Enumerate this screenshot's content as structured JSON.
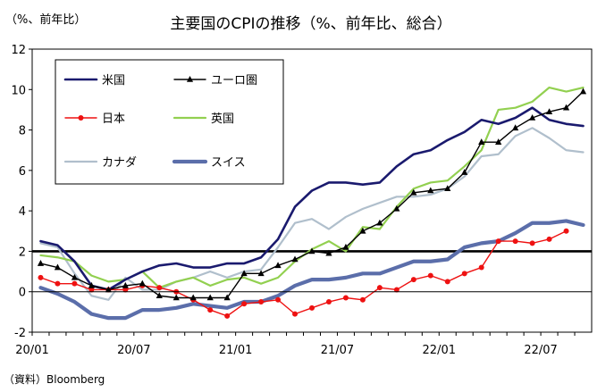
{
  "chart_data": {
    "type": "line",
    "title": "主要国のCPIの推移（%、前年比、総合）",
    "unit_label": "（%、前年比）",
    "source": "（資料）Bloomberg",
    "x_tick_labels": [
      "20/01",
      "20/07",
      "21/01",
      "21/07",
      "22/01",
      "22/07"
    ],
    "months": [
      "20/01",
      "20/02",
      "20/03",
      "20/04",
      "20/05",
      "20/06",
      "20/07",
      "20/08",
      "20/09",
      "20/10",
      "20/11",
      "20/12",
      "21/01",
      "21/02",
      "21/03",
      "21/04",
      "21/05",
      "21/06",
      "21/07",
      "21/08",
      "21/09",
      "21/10",
      "21/11",
      "21/12",
      "22/01",
      "22/02",
      "22/03",
      "22/04",
      "22/05",
      "22/06",
      "22/07",
      "22/08",
      "22/09"
    ],
    "ylim": [
      -2,
      12
    ],
    "yticks": [
      -2,
      0,
      2,
      4,
      6,
      8,
      10,
      12
    ],
    "reference_line": 2,
    "legend_position": "top-left, inside",
    "series": [
      {
        "name": "米国",
        "color": "#1a1a6e",
        "width": 2.6,
        "marker": "none",
        "values": [
          2.5,
          2.3,
          1.5,
          0.3,
          0.1,
          0.6,
          1.0,
          1.3,
          1.4,
          1.2,
          1.2,
          1.4,
          1.4,
          1.7,
          2.6,
          4.2,
          5.0,
          5.4,
          5.4,
          5.3,
          5.4,
          6.2,
          6.8,
          7.0,
          7.5,
          7.9,
          8.5,
          8.3,
          8.6,
          9.1,
          8.5,
          8.3,
          8.2
        ]
      },
      {
        "name": "ユーロ圏",
        "color": "#000000",
        "width": 1.4,
        "marker": "triangle",
        "values": [
          1.4,
          1.2,
          0.7,
          0.3,
          0.1,
          0.3,
          0.4,
          -0.2,
          -0.3,
          -0.3,
          -0.3,
          -0.3,
          0.9,
          0.9,
          1.3,
          1.6,
          2.0,
          1.9,
          2.2,
          3.0,
          3.4,
          4.1,
          4.9,
          5.0,
          5.1,
          5.9,
          7.4,
          7.4,
          8.1,
          8.6,
          8.9,
          9.1,
          9.9
        ]
      },
      {
        "name": "日本",
        "color": "#ee1111",
        "width": 1.4,
        "marker": "circle",
        "values": [
          0.7,
          0.4,
          0.4,
          0.1,
          0.1,
          0.1,
          0.3,
          0.2,
          0.0,
          -0.4,
          -0.9,
          -1.2,
          -0.6,
          -0.5,
          -0.4,
          -1.1,
          -0.8,
          -0.5,
          -0.3,
          -0.4,
          0.2,
          0.1,
          0.6,
          0.8,
          0.5,
          0.9,
          1.2,
          2.5,
          2.5,
          2.4,
          2.6,
          3.0,
          null
        ]
      },
      {
        "name": "英国",
        "color": "#92d050",
        "width": 2.2,
        "marker": "none",
        "values": [
          1.8,
          1.7,
          1.5,
          0.8,
          0.5,
          0.6,
          1.0,
          0.2,
          0.5,
          0.7,
          0.3,
          0.6,
          0.7,
          0.4,
          0.7,
          1.5,
          2.1,
          2.5,
          2.0,
          3.2,
          3.1,
          4.2,
          5.1,
          5.4,
          5.5,
          6.2,
          7.0,
          9.0,
          9.1,
          9.4,
          10.1,
          9.9,
          10.1
        ]
      },
      {
        "name": "カナダ",
        "color": "#b0bfcc",
        "width": 2.2,
        "marker": "none",
        "values": [
          2.4,
          2.2,
          0.9,
          -0.2,
          -0.4,
          0.7,
          0.1,
          0.1,
          0.5,
          0.7,
          1.0,
          0.7,
          1.0,
          1.1,
          2.2,
          3.4,
          3.6,
          3.1,
          3.7,
          4.1,
          4.4,
          4.7,
          4.7,
          4.8,
          5.1,
          5.7,
          6.7,
          6.8,
          7.7,
          8.1,
          7.6,
          7.0,
          6.9
        ]
      },
      {
        "name": "スイス",
        "color": "#5b6eaa",
        "width": 4.2,
        "marker": "none",
        "values": [
          0.2,
          -0.1,
          -0.5,
          -1.1,
          -1.3,
          -1.3,
          -0.9,
          -0.9,
          -0.8,
          -0.6,
          -0.7,
          -0.8,
          -0.5,
          -0.5,
          -0.2,
          0.3,
          0.6,
          0.6,
          0.7,
          0.9,
          0.9,
          1.2,
          1.5,
          1.5,
          1.6,
          2.2,
          2.4,
          2.5,
          2.9,
          3.4,
          3.4,
          3.5,
          3.3
        ]
      }
    ],
    "legend_layout": [
      [
        "米国",
        "ユーロ圏"
      ],
      [
        "日本",
        "英国"
      ],
      [
        "カナダ",
        "スイス"
      ]
    ]
  }
}
